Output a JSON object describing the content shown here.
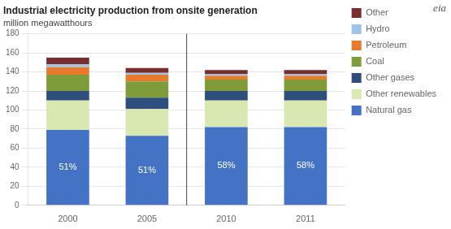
{
  "chart_data": {
    "type": "bar",
    "title": "Industrial electricity production from onsite generation",
    "subtitle": "million megawatthours",
    "categories": [
      "2000",
      "2005",
      "2010",
      "2011"
    ],
    "series": [
      {
        "name": "Natural gas",
        "color": "#4472C4",
        "values": [
          79,
          73,
          82,
          82
        ]
      },
      {
        "name": "Other renewables",
        "color": "#D9E8B0",
        "values": [
          31,
          28,
          28,
          28
        ]
      },
      {
        "name": "Other gases",
        "color": "#2E4E7E",
        "values": [
          10,
          12,
          10,
          10
        ]
      },
      {
        "name": "Coal",
        "color": "#7F9C3A",
        "values": [
          17,
          17,
          12,
          12
        ]
      },
      {
        "name": "Petroleum",
        "color": "#E87A2D",
        "values": [
          8,
          7,
          4,
          4
        ]
      },
      {
        "name": "Hydro",
        "color": "#9DC3E6",
        "values": [
          3,
          2,
          2,
          2
        ]
      },
      {
        "name": "Other",
        "color": "#7B2C2C",
        "values": [
          7,
          5,
          4,
          4
        ]
      }
    ],
    "stacked": true,
    "ylim": [
      0,
      180
    ],
    "yticks": [
      0,
      20,
      40,
      60,
      80,
      100,
      120,
      140,
      160,
      180
    ],
    "grid": true,
    "legend": "right",
    "annotations": [
      {
        "series": "Natural gas",
        "category": "2000",
        "text": "51%"
      },
      {
        "series": "Natural gas",
        "category": "2005",
        "text": "51%"
      },
      {
        "series": "Natural gas",
        "category": "2010",
        "text": "58%"
      },
      {
        "series": "Natural gas",
        "category": "2011",
        "text": "58%"
      },
      {
        "text": "eia"
      },
      {
        "type": "vline",
        "after": "2005"
      }
    ]
  }
}
